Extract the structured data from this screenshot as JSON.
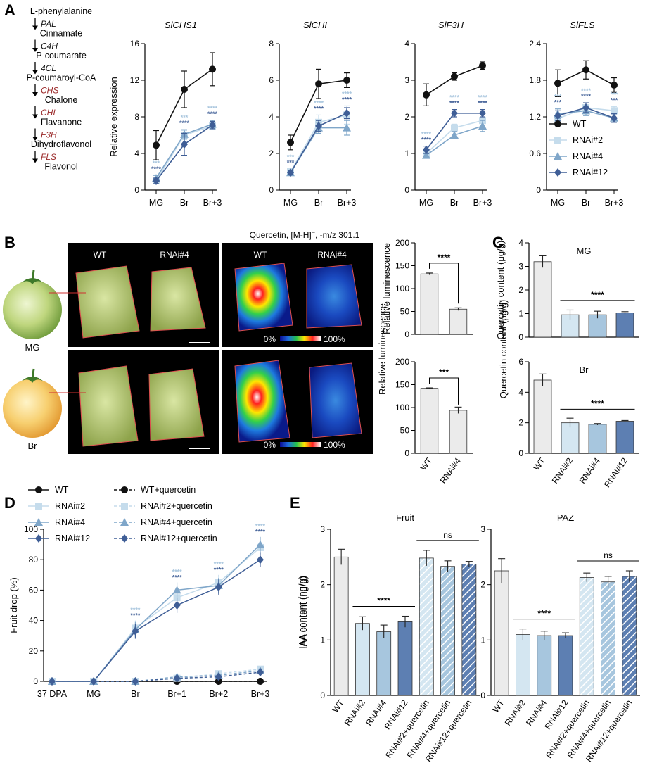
{
  "panels": {
    "A": "A",
    "B": "B",
    "C": "C",
    "D": "D",
    "E": "E"
  },
  "colors": {
    "wt": "#111111",
    "rnai2": "#c5dcec",
    "rnai4": "#7fa6c9",
    "rnai12": "#3f5e96",
    "bar_wt": "#ebebeb",
    "bar2": "#d4e6f1",
    "bar4": "#a7c6de",
    "bar12": "#5d7fb2"
  },
  "pathway": [
    {
      "compound": "L-phenylalanine",
      "enzyme": "PAL",
      "highlight": false
    },
    {
      "compound": "Cinnamate",
      "enzyme": "C4H",
      "highlight": false
    },
    {
      "compound": "P-coumarate",
      "enzyme": "4CL",
      "highlight": false
    },
    {
      "compound": "P-coumaroyl-CoA",
      "enzyme": "CHS",
      "highlight": true
    },
    {
      "compound": "Chalone",
      "enzyme": "CHI",
      "highlight": true
    },
    {
      "compound": "Flavanone",
      "enzyme": "F3H",
      "highlight": true
    },
    {
      "compound": "Dihydroflavonol",
      "enzyme": "FLS",
      "highlight": true
    },
    {
      "compound": "Flavonol",
      "enzyme": null,
      "highlight": false
    }
  ],
  "legend_A": [
    "WT",
    "RNAi#2",
    "RNAi#4",
    "RNAi#12"
  ],
  "panel_B": {
    "wt_label": "WT",
    "rnai_label": "RNAi#4",
    "maldi_title": "Quercetin, [M-H]",
    "maldi_sup": "−",
    "maldi_mz": ", -m/z 301.1",
    "scale_min": "0%",
    "scale_max": "100%",
    "fruit_labels": [
      "MG",
      "Br"
    ]
  },
  "chart_data": [
    {
      "id": "A1",
      "type": "line",
      "title": "SlCHS1",
      "ylabel": "Relative expression",
      "categories": [
        "MG",
        "Br",
        "Br+3"
      ],
      "ylim": [
        0,
        16
      ],
      "yticks": [
        0,
        4,
        8,
        12,
        16
      ],
      "series": [
        {
          "name": "WT",
          "values": [
            4.9,
            11.0,
            13.2
          ],
          "err": [
            1.6,
            2.0,
            1.8
          ]
        },
        {
          "name": "RNAi#2",
          "values": [
            1.0,
            6.0,
            7.0
          ],
          "err": [
            0.3,
            0.5,
            0.4
          ]
        },
        {
          "name": "RNAi#4",
          "values": [
            1.3,
            6.1,
            7.2
          ],
          "err": [
            0.3,
            0.5,
            0.4
          ]
        },
        {
          "name": "RNAi#12",
          "values": [
            1.0,
            5.0,
            7.1
          ],
          "err": [
            0.3,
            1.2,
            0.4
          ]
        }
      ],
      "sig": [
        [
          "***",
          "***",
          "****"
        ],
        [
          "****",
          "****",
          "****"
        ]
      ]
    },
    {
      "id": "A2",
      "type": "line",
      "title": "SlCHI",
      "categories": [
        "MG",
        "Br",
        "Br+3"
      ],
      "ylim": [
        0,
        8
      ],
      "yticks": [
        0,
        2,
        4,
        6,
        8
      ],
      "series": [
        {
          "name": "WT",
          "values": [
            2.6,
            5.8,
            6.0
          ],
          "err": [
            0.4,
            0.8,
            0.4
          ]
        },
        {
          "name": "RNAi#2",
          "values": [
            1.0,
            3.7,
            4.1
          ],
          "err": [
            0.15,
            0.4,
            0.5
          ]
        },
        {
          "name": "RNAi#4",
          "values": [
            0.95,
            3.4,
            3.4
          ],
          "err": [
            0.1,
            0.3,
            0.4
          ]
        },
        {
          "name": "RNAi#12",
          "values": [
            0.95,
            3.5,
            4.2
          ],
          "err": [
            0.1,
            0.3,
            0.3
          ]
        }
      ],
      "sig": [
        [
          "***",
          "****",
          "****"
        ],
        [
          "***",
          "****",
          "****"
        ]
      ]
    },
    {
      "id": "A3",
      "type": "line",
      "title": "SlF3H",
      "categories": [
        "MG",
        "Br",
        "Br+3"
      ],
      "ylim": [
        0,
        4
      ],
      "yticks": [
        0,
        1,
        2,
        3,
        4
      ],
      "series": [
        {
          "name": "WT",
          "values": [
            2.6,
            3.1,
            3.4
          ],
          "err": [
            0.3,
            0.1,
            0.1
          ]
        },
        {
          "name": "RNAi#2",
          "values": [
            1.0,
            1.7,
            1.9
          ],
          "err": [
            0.1,
            0.1,
            0.15
          ]
        },
        {
          "name": "RNAi#4",
          "values": [
            0.95,
            1.5,
            1.75
          ],
          "err": [
            0.05,
            0.1,
            0.15
          ]
        },
        {
          "name": "RNAi#12",
          "values": [
            1.1,
            2.1,
            2.1
          ],
          "err": [
            0.1,
            0.1,
            0.1
          ]
        }
      ],
      "sig": [
        [
          "****",
          "****",
          "****"
        ],
        [
          "****",
          "****",
          "****"
        ]
      ]
    },
    {
      "id": "A4",
      "type": "line",
      "title": "SlFLS",
      "categories": [
        "MG",
        "Br",
        "Br+3"
      ],
      "ylim": [
        0,
        2.4
      ],
      "yticks": [
        0,
        0.6,
        1.2,
        1.8,
        2.4
      ],
      "series": [
        {
          "name": "WT",
          "values": [
            1.75,
            1.97,
            1.72
          ],
          "err": [
            0.22,
            0.15,
            0.12
          ]
        },
        {
          "name": "RNAi#2",
          "values": [
            1.17,
            1.35,
            1.3
          ],
          "err": [
            0.08,
            0.08,
            0.07
          ]
        },
        {
          "name": "RNAi#4",
          "values": [
            1.25,
            1.3,
            1.18
          ],
          "err": [
            0.08,
            0.08,
            0.07
          ]
        },
        {
          "name": "RNAi#12",
          "values": [
            1.22,
            1.35,
            1.18
          ],
          "err": [
            0.08,
            0.08,
            0.07
          ]
        }
      ],
      "sig": [
        [
          "***",
          "****",
          "***"
        ],
        [
          "***",
          "****",
          "***"
        ]
      ]
    },
    {
      "id": "B1",
      "type": "bar",
      "ylabel": "Relative luminescence",
      "categories": [
        "WT",
        "RNAi#4"
      ],
      "ylim": [
        0,
        200
      ],
      "yticks": [
        0,
        50,
        100,
        150,
        200
      ],
      "values": [
        132,
        55
      ],
      "err": [
        2,
        3
      ],
      "sig": "****"
    },
    {
      "id": "B2",
      "type": "bar",
      "categories": [
        "WT",
        "RNAi#4"
      ],
      "ylim": [
        0,
        200
      ],
      "yticks": [
        0,
        50,
        100,
        150,
        200
      ],
      "values": [
        142,
        94
      ],
      "err": [
        1,
        7
      ],
      "sig": "***"
    },
    {
      "id": "C1",
      "type": "bar",
      "title": "MG",
      "ylabel": "Quercetin content (μg/g)",
      "categories": [
        "WT",
        "RNAi#2",
        "RNAi#4",
        "RNAi#12"
      ],
      "ylim": [
        0,
        4
      ],
      "yticks": [
        0,
        1,
        2,
        3,
        4
      ],
      "values": [
        3.2,
        0.95,
        0.95,
        1.03
      ],
      "err": [
        0.25,
        0.2,
        0.15,
        0.05
      ],
      "sig": "****"
    },
    {
      "id": "C2",
      "type": "bar",
      "title": "Br",
      "categories": [
        "WT",
        "RNAi#2",
        "RNAi#4",
        "RNAi#12"
      ],
      "ylim": [
        0,
        6
      ],
      "yticks": [
        0,
        2,
        4,
        6
      ],
      "values": [
        4.8,
        2.0,
        1.9,
        2.1
      ],
      "err": [
        0.4,
        0.3,
        0.05,
        0.05
      ],
      "sig": "****"
    },
    {
      "id": "D",
      "type": "line",
      "ylabel": "Fruit drop (%)",
      "categories": [
        "37 DPA",
        "MG",
        "Br",
        "Br+1",
        "Br+2",
        "Br+3"
      ],
      "ylim": [
        0,
        100
      ],
      "yticks": [
        0,
        20,
        40,
        60,
        80,
        100
      ],
      "legend": [
        "WT",
        "WT+quercetin",
        "RNAi#2",
        "RNAi#2+quercetin",
        "RNAi#4",
        "RNAi#4+quercetin",
        "RNAi#12",
        "RNAi#12+quercetin"
      ],
      "series": [
        {
          "name": "WT",
          "values": [
            0,
            0,
            0,
            0,
            0,
            0
          ]
        },
        {
          "name": "RNAi#2",
          "values": [
            0,
            0,
            35,
            55,
            65,
            88
          ]
        },
        {
          "name": "RNAi#4",
          "values": [
            0,
            0,
            34,
            60,
            63,
            90
          ]
        },
        {
          "name": "RNAi#12",
          "values": [
            0,
            0,
            33,
            50,
            62,
            80
          ]
        },
        {
          "name": "WT+quercetin",
          "values": [
            0,
            0,
            0,
            0,
            0,
            0
          ]
        },
        {
          "name": "RNAi#2+quercetin",
          "values": [
            0,
            0,
            0,
            2,
            5,
            8
          ]
        },
        {
          "name": "RNAi#4+quercetin",
          "values": [
            0,
            0,
            0,
            3,
            4,
            7
          ]
        },
        {
          "name": "RNAi#12+quercetin",
          "values": [
            0,
            0,
            0,
            2,
            3,
            6
          ]
        }
      ],
      "sig": [
        "****",
        "****",
        "****",
        "****"
      ]
    },
    {
      "id": "E1",
      "type": "bar",
      "title": "Fruit",
      "ylabel": "IAA content (ng/g)",
      "categories": [
        "WT",
        "RNAi#2",
        "RNAi#4",
        "RNAi#12",
        "RNAi#2+quercetin",
        "RNAi#4+quercetin",
        "RNAi#12+quercetin"
      ],
      "ylim": [
        0,
        3
      ],
      "yticks": [
        0,
        1,
        2,
        3
      ],
      "values": [
        2.5,
        1.3,
        1.15,
        1.33,
        2.48,
        2.33,
        2.37
      ],
      "err": [
        0.14,
        0.12,
        0.12,
        0.1,
        0.14,
        0.1,
        0.05
      ],
      "sig": [
        "****",
        "ns"
      ]
    },
    {
      "id": "E2",
      "type": "bar",
      "title": "PAZ",
      "categories": [
        "WT",
        "RNAi#2",
        "RNAi#4",
        "RNAi#12",
        "RNAi#2+quercetin",
        "RNAi#4+quercetin",
        "RNAi#12+quercetin"
      ],
      "ylim": [
        0,
        3
      ],
      "yticks": [
        0,
        1,
        2,
        3
      ],
      "values": [
        2.25,
        1.1,
        1.08,
        1.08,
        2.13,
        2.05,
        2.15
      ],
      "err": [
        0.22,
        0.1,
        0.08,
        0.05,
        0.08,
        0.1,
        0.1
      ],
      "sig": [
        "****",
        "ns"
      ]
    }
  ]
}
